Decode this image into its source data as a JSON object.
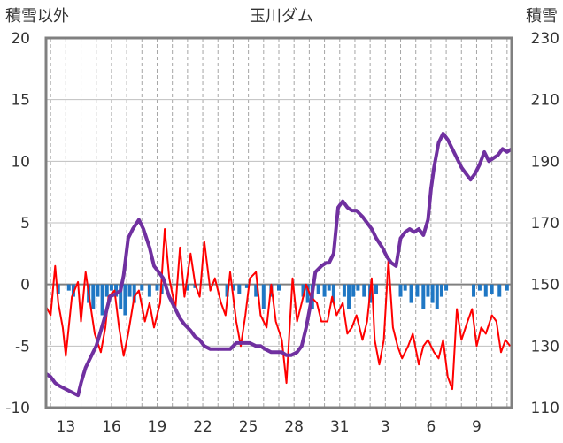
{
  "chart_data": {
    "type": "line",
    "title": "玉川ダム",
    "ylabel_left": "積雪以外",
    "ylabel_right": "積雪",
    "ylim_left": [
      -10,
      20
    ],
    "ylim_right": [
      110,
      230
    ],
    "yticks_left": [
      "20",
      "15",
      "10",
      "5",
      "0",
      "-5",
      "-10"
    ],
    "yticks_right": [
      "230",
      "210",
      "190",
      "170",
      "150",
      "130",
      "110"
    ],
    "xticks": [
      "13",
      "16",
      "19",
      "22",
      "25",
      "28",
      "31",
      "3",
      "6",
      "9"
    ],
    "x_range_days": [
      11.7,
      42.3
    ],
    "xtick_days": [
      13,
      16,
      19,
      22,
      25,
      28,
      31,
      34,
      37,
      40
    ],
    "grid": "vertical dashed daily",
    "colors": {
      "snow_depth": "#7030a0",
      "temperature": "#ff0000",
      "precipitation": "#1f77c4",
      "axes": "#808080"
    },
    "series": [
      {
        "key": "temperature",
        "axis": "left",
        "x": [
          11.7,
          12.0,
          12.3,
          12.5,
          12.8,
          13.0,
          13.4,
          13.8,
          14.0,
          14.3,
          14.6,
          14.9,
          15.3,
          15.6,
          15.8,
          16.2,
          16.5,
          16.8,
          17.1,
          17.5,
          17.8,
          18.2,
          18.5,
          18.8,
          19.2,
          19.5,
          19.8,
          20.2,
          20.5,
          20.8,
          21.2,
          21.5,
          21.8,
          22.1,
          22.5,
          22.8,
          23.2,
          23.5,
          23.8,
          24.2,
          24.5,
          24.8,
          25.1,
          25.5,
          25.8,
          26.2,
          26.5,
          26.8,
          27.2,
          27.5,
          27.9,
          28.2,
          28.5,
          28.8,
          29.1,
          29.5,
          29.8,
          30.2,
          30.5,
          30.8,
          31.2,
          31.5,
          31.8,
          32.1,
          32.5,
          32.8,
          33.1,
          33.3,
          33.6,
          33.9,
          34.2,
          34.5,
          34.8,
          35.1,
          35.5,
          35.8,
          36.2,
          36.5,
          36.8,
          37.2,
          37.5,
          37.8,
          38.1,
          38.4,
          38.7,
          39.0,
          39.4,
          39.7,
          40.0,
          40.3,
          40.6,
          41.0,
          41.3,
          41.6,
          41.9,
          42.2
        ],
        "values": [
          -1.8,
          -2.5,
          1.5,
          -1.5,
          -3.5,
          -5.8,
          -1.0,
          0.2,
          -3.0,
          1.0,
          -1.5,
          -4.0,
          -5.5,
          -3.5,
          -1.0,
          -0.5,
          -3.5,
          -5.8,
          -4.0,
          -1.0,
          -0.5,
          -3.0,
          -1.5,
          -3.5,
          -1.5,
          4.5,
          0.5,
          -2.0,
          3.0,
          -1.0,
          2.5,
          0.0,
          -1.0,
          3.5,
          -0.5,
          0.5,
          -1.5,
          -2.5,
          1.0,
          -3.0,
          -5.0,
          -2.5,
          0.5,
          1.0,
          -2.5,
          -3.5,
          0.0,
          -3.0,
          -4.5,
          -8.0,
          0.5,
          -3.0,
          -1.5,
          0.0,
          -1.0,
          -1.5,
          -3.0,
          -3.0,
          -1.0,
          -2.5,
          -1.5,
          -4.0,
          -3.5,
          -2.5,
          -4.5,
          -3.0,
          0.5,
          -4.5,
          -6.5,
          -4.5,
          2.0,
          -3.5,
          -5.0,
          -6.0,
          -5.0,
          -4.0,
          -6.5,
          -5.0,
          -4.5,
          -5.5,
          -6.0,
          -4.5,
          -7.5,
          -8.5,
          -2.0,
          -4.5,
          -3.0,
          -2.0,
          -5.0,
          -3.5,
          -4.0,
          -2.5,
          -3.0,
          -5.5,
          -4.5,
          -5.0
        ]
      },
      {
        "key": "snow_depth",
        "axis": "right",
        "x": [
          11.7,
          12.0,
          12.3,
          12.6,
          13.0,
          13.4,
          13.8,
          14.0,
          14.3,
          14.6,
          15.0,
          15.3,
          15.6,
          15.9,
          16.3,
          16.6,
          16.8,
          17.1,
          17.4,
          17.8,
          18.1,
          18.5,
          18.8,
          19.1,
          19.4,
          19.8,
          20.2,
          20.5,
          20.8,
          21.2,
          21.5,
          21.8,
          22.1,
          22.5,
          22.8,
          23.2,
          23.5,
          23.8,
          24.2,
          24.5,
          24.8,
          25.1,
          25.5,
          25.8,
          26.1,
          26.5,
          26.8,
          27.2,
          27.5,
          27.8,
          28.2,
          28.5,
          28.8,
          29.1,
          29.4,
          29.8,
          30.1,
          30.3,
          30.6,
          30.9,
          31.2,
          31.5,
          31.8,
          32.1,
          32.5,
          32.8,
          33.1,
          33.4,
          33.8,
          34.1,
          34.4,
          34.7,
          35.0,
          35.3,
          35.6,
          35.9,
          36.2,
          36.5,
          36.8,
          37.0,
          37.2,
          37.5,
          37.8,
          38.1,
          38.4,
          38.7,
          39.0,
          39.3,
          39.6,
          39.9,
          40.2,
          40.5,
          40.8,
          41.1,
          41.4,
          41.7,
          42.0,
          42.3
        ],
        "values": [
          121,
          120,
          118,
          117,
          116,
          115,
          114,
          118,
          123,
          126,
          130,
          135,
          140,
          146,
          147,
          148,
          153,
          165,
          168,
          171,
          168,
          162,
          156,
          154,
          152,
          146,
          142,
          139,
          137,
          135,
          133,
          132,
          130,
          129,
          129,
          129,
          129,
          129,
          131,
          131,
          131,
          131,
          130,
          130,
          129,
          128,
          128,
          128,
          127,
          127,
          128,
          130,
          136,
          144,
          154,
          156,
          157,
          157,
          160,
          175,
          177,
          175,
          174,
          174,
          172,
          170,
          168,
          165,
          162,
          159,
          157,
          156,
          165,
          167,
          168,
          167,
          168,
          166,
          171,
          181,
          188,
          196,
          199,
          197,
          194,
          191,
          188,
          186,
          184,
          186,
          189,
          193,
          190,
          191,
          192,
          194,
          193,
          194
        ]
      },
      {
        "key": "precipitation",
        "axis": "left",
        "type": "bar",
        "x": [
          12.5,
          13.2,
          13.5,
          14.5,
          14.8,
          15.1,
          15.4,
          15.7,
          16.0,
          16.3,
          16.6,
          16.9,
          17.2,
          17.5,
          18.0,
          18.5,
          19.0,
          19.3,
          21.0,
          21.5,
          23.6,
          24.0,
          24.4,
          24.9,
          25.5,
          26.0,
          26.5,
          27.0,
          28.6,
          28.9,
          29.2,
          29.6,
          30.0,
          30.3,
          30.6,
          31.3,
          31.6,
          31.9,
          32.2,
          32.6,
          33.0,
          33.4,
          35.0,
          35.3,
          35.7,
          36.1,
          36.5,
          36.8,
          37.1,
          37.4,
          37.7,
          38.0,
          39.8,
          40.2,
          40.6,
          41.0,
          41.5,
          42.0
        ],
        "values": [
          -0.8,
          -0.5,
          -1.0,
          -1.5,
          -2.0,
          -1.0,
          -2.5,
          -1.0,
          -0.5,
          -1.0,
          -2.0,
          -2.5,
          -1.0,
          -1.5,
          -0.5,
          -1.0,
          -0.5,
          -0.8,
          -0.5,
          -0.3,
          -1.0,
          -0.5,
          -0.8,
          -0.3,
          -1.0,
          -2.0,
          -1.0,
          -0.5,
          -1.0,
          -1.5,
          -2.0,
          -0.8,
          -1.0,
          -0.5,
          -1.5,
          -1.0,
          -2.0,
          -1.0,
          -0.5,
          -1.0,
          -1.5,
          -0.8,
          -1.0,
          -0.5,
          -1.5,
          -1.0,
          -2.0,
          -1.0,
          -1.5,
          -2.0,
          -1.0,
          -0.5,
          -1.0,
          -0.5,
          -1.0,
          -0.8,
          -1.0,
          -0.5
        ]
      }
    ]
  }
}
